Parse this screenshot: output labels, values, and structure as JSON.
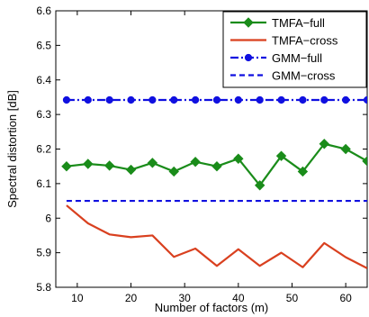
{
  "chart_data": {
    "type": "line",
    "title": "",
    "xlabel": "Number of factors (m)",
    "ylabel": "Spectral distortion [dB]",
    "xlim": [
      6,
      64
    ],
    "ylim": [
      5.8,
      6.6
    ],
    "xticks": [
      10,
      20,
      30,
      40,
      50,
      60
    ],
    "yticks": [
      5.8,
      5.9,
      6.0,
      6.1,
      6.2,
      6.3,
      6.4,
      6.5,
      6.6
    ],
    "xtick_labels": [
      "10",
      "20",
      "30",
      "40",
      "50",
      "60"
    ],
    "ytick_labels": [
      "5.8",
      "5.9",
      "6",
      "6.1",
      "6.2",
      "6.3",
      "6.4",
      "6.5",
      "6.6"
    ],
    "grid": false,
    "legend_position": "top-right",
    "series": [
      {
        "name": "TMFA−full",
        "color": "#1a8c1a",
        "line": "solid",
        "marker": "diamond",
        "x": [
          8,
          12,
          16,
          20,
          24,
          28,
          32,
          36,
          40,
          44,
          48,
          52,
          56,
          60,
          64
        ],
        "y": [
          6.15,
          6.157,
          6.152,
          6.14,
          6.16,
          6.135,
          6.163,
          6.15,
          6.172,
          6.095,
          6.18,
          6.135,
          6.215,
          6.2,
          6.165
        ]
      },
      {
        "name": "TMFA−cross",
        "color": "#d9401f",
        "line": "solid",
        "marker": "none",
        "x": [
          8,
          12,
          16,
          20,
          24,
          28,
          32,
          36,
          40,
          44,
          48,
          52,
          56,
          60,
          64
        ],
        "y": [
          6.037,
          5.985,
          5.953,
          5.945,
          5.95,
          5.888,
          5.912,
          5.862,
          5.91,
          5.862,
          5.9,
          5.858,
          5.928,
          5.887,
          5.855
        ]
      },
      {
        "name": "GMM−full",
        "color": "#1010e0",
        "line": "dashdot",
        "marker": "circle",
        "x": [
          8,
          12,
          16,
          20,
          24,
          28,
          32,
          36,
          40,
          44,
          48,
          52,
          56,
          60,
          64
        ],
        "y": [
          6.342,
          6.342,
          6.342,
          6.342,
          6.342,
          6.342,
          6.342,
          6.342,
          6.342,
          6.342,
          6.342,
          6.342,
          6.342,
          6.342,
          6.342
        ]
      },
      {
        "name": "GMM−cross",
        "color": "#1010e0",
        "line": "dashed",
        "marker": "none",
        "x": [
          8,
          64
        ],
        "y": [
          6.05,
          6.05
        ]
      }
    ]
  }
}
